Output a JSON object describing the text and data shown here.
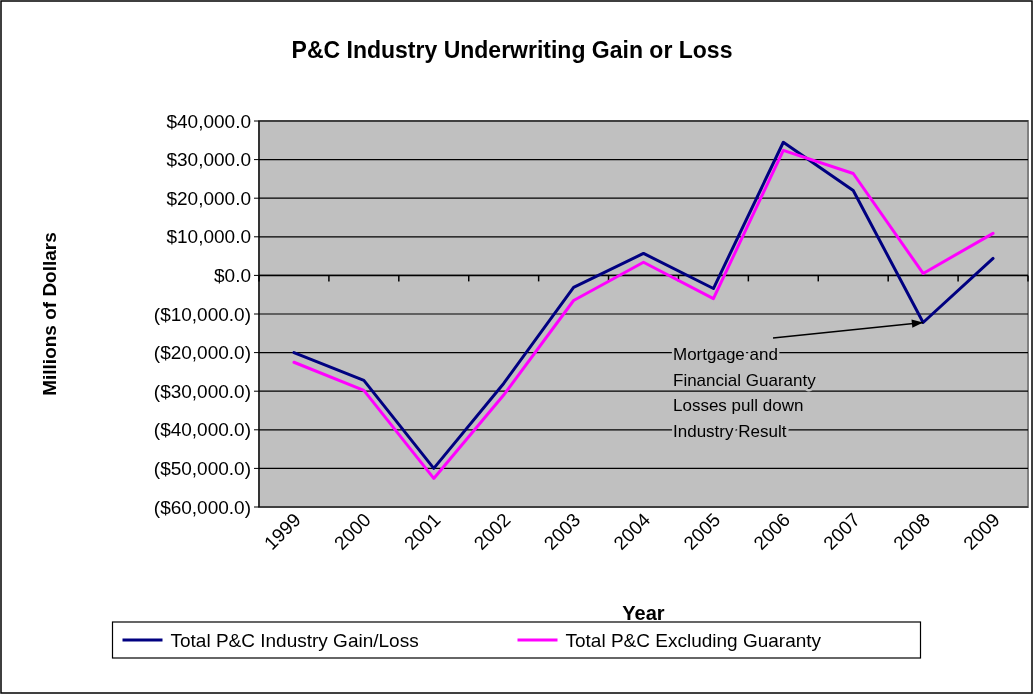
{
  "chart_data": {
    "type": "line",
    "title": "P&C Industry Underwriting Gain or Loss",
    "xlabel": "Year",
    "ylabel": "Millions of Dollars",
    "categories": [
      "1999",
      "2000",
      "2001",
      "2002",
      "2003",
      "2004",
      "2005",
      "2006",
      "2007",
      "2008",
      "2009"
    ],
    "series": [
      {
        "name": "Total P&C Industry  Gain/Loss",
        "color": "#000080",
        "values": [
          -20000,
          -27200,
          -50000,
          -28000,
          -3100,
          5700,
          -3400,
          34500,
          22000,
          -12200,
          4400
        ]
      },
      {
        "name": "Total P&C Excluding Guaranty",
        "color": "#ff00ff",
        "values": [
          -22500,
          -29800,
          -52600,
          -31000,
          -6500,
          3400,
          -6000,
          32400,
          26400,
          500,
          10900
        ]
      }
    ],
    "ylim": [
      -60000,
      40000
    ],
    "yticks": [
      {
        "value": -60000,
        "label": "($60,000.0)"
      },
      {
        "value": -50000,
        "label": "($50,000.0)"
      },
      {
        "value": -40000,
        "label": "($40,000.0)"
      },
      {
        "value": -30000,
        "label": "($30,000.0)"
      },
      {
        "value": -20000,
        "label": "($20,000.0)"
      },
      {
        "value": -10000,
        "label": "($10,000.0)"
      },
      {
        "value": 0,
        "label": "$0.0"
      },
      {
        "value": 10000,
        "label": "$10,000.0"
      },
      {
        "value": 20000,
        "label": "$20,000.0"
      },
      {
        "value": 30000,
        "label": "$30,000.0"
      },
      {
        "value": 40000,
        "label": "$40,000.0"
      }
    ],
    "grid": "y",
    "legend": "bottom",
    "marker": "none",
    "line_style": "solid",
    "annotations": [
      {
        "text": "Mortgage and\nFinancial Guaranty\nLosses pull down\nIndustry Result",
        "x": "2008",
        "y": -12200
      }
    ]
  }
}
